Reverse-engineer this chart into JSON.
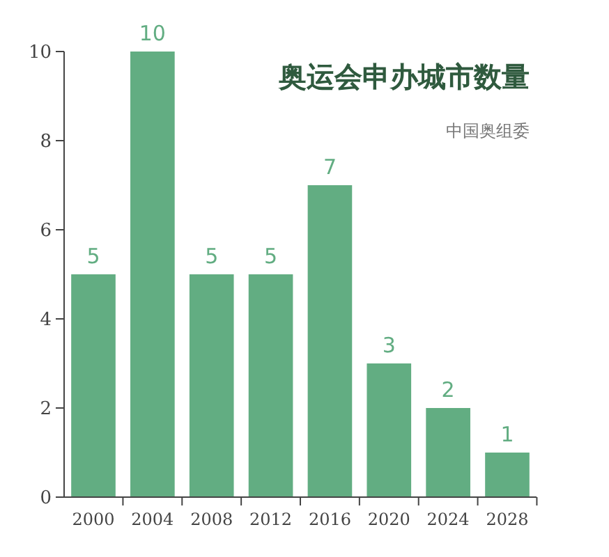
{
  "chart_data": {
    "type": "bar",
    "title": "奥运会申办城市数量",
    "annotations": [
      "中国奥组委"
    ],
    "categories": [
      "2000",
      "2004",
      "2008",
      "2012",
      "2016",
      "2020",
      "2024",
      "2028"
    ],
    "values": [
      5,
      10,
      5,
      5,
      7,
      3,
      2,
      1
    ],
    "color": "#62ad82",
    "data_labels": true,
    "ylim": [
      0,
      10
    ],
    "yticks": [
      0,
      2,
      4,
      6,
      8,
      10
    ],
    "grid": false
  }
}
